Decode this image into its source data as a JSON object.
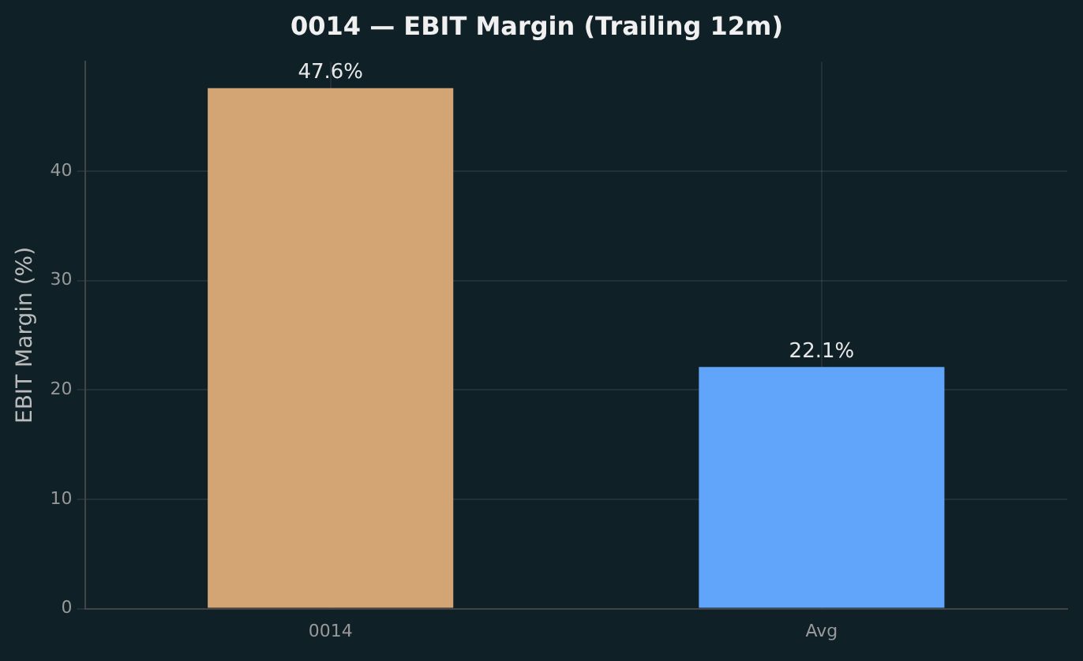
{
  "chart_data": {
    "type": "bar",
    "title": "0014 — EBIT Margin (Trailing 12m)",
    "ylabel": "EBIT Margin (%)",
    "categories": [
      "0014",
      "Avg"
    ],
    "values": [
      47.6,
      22.1
    ],
    "colors": [
      "#d4a574",
      "#60a5fa"
    ],
    "ylim": [
      0,
      50
    ],
    "yticks": [
      0,
      10,
      20,
      30,
      40
    ],
    "grid": true,
    "value_labels": [
      "47.6%",
      "22.1%"
    ]
  }
}
